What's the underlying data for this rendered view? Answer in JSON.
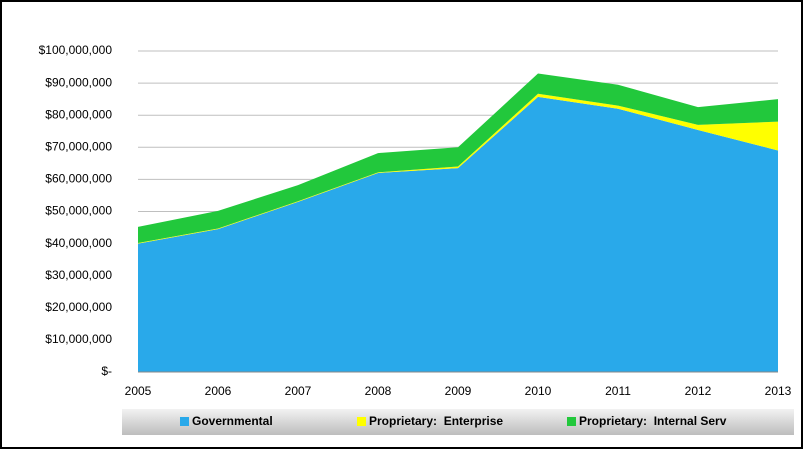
{
  "chart_data": {
    "type": "stacked_area",
    "categories": [
      "2005",
      "2006",
      "2007",
      "2008",
      "2009",
      "2010",
      "2011",
      "2012",
      "2013"
    ],
    "series": [
      {
        "name": "Governmental",
        "color": "#29a9ea",
        "values": [
          40000000,
          44500000,
          53000000,
          62000000,
          63500000,
          85700000,
          82000000,
          75400000,
          69000000
        ]
      },
      {
        "name": "Proprietary:  Enterprise",
        "color": "#ffff00",
        "values": [
          200000,
          200000,
          200000,
          200000,
          500000,
          1000000,
          1000000,
          1600000,
          9000000
        ]
      },
      {
        "name": "Proprietary:  Internal Serv",
        "color": "#22c83c",
        "values": [
          5000000,
          5500000,
          5000000,
          6000000,
          6000000,
          6300000,
          6500000,
          5500000,
          7000000
        ]
      }
    ],
    "ylim": [
      0,
      100000000
    ],
    "yticks": [
      {
        "value": 0,
        "label": "$-"
      },
      {
        "value": 10000000,
        "label": "$10,000,000"
      },
      {
        "value": 20000000,
        "label": "$20,000,000"
      },
      {
        "value": 30000000,
        "label": "$30,000,000"
      },
      {
        "value": 40000000,
        "label": "$40,000,000"
      },
      {
        "value": 50000000,
        "label": "$50,000,000"
      },
      {
        "value": 60000000,
        "label": "$60,000,000"
      },
      {
        "value": 70000000,
        "label": "$70,000,000"
      },
      {
        "value": 80000000,
        "label": "$80,000,000"
      },
      {
        "value": 90000000,
        "label": "$90,000,000"
      },
      {
        "value": 100000000,
        "label": "$100,000,000"
      }
    ],
    "grid": true,
    "legend": "bottom"
  }
}
